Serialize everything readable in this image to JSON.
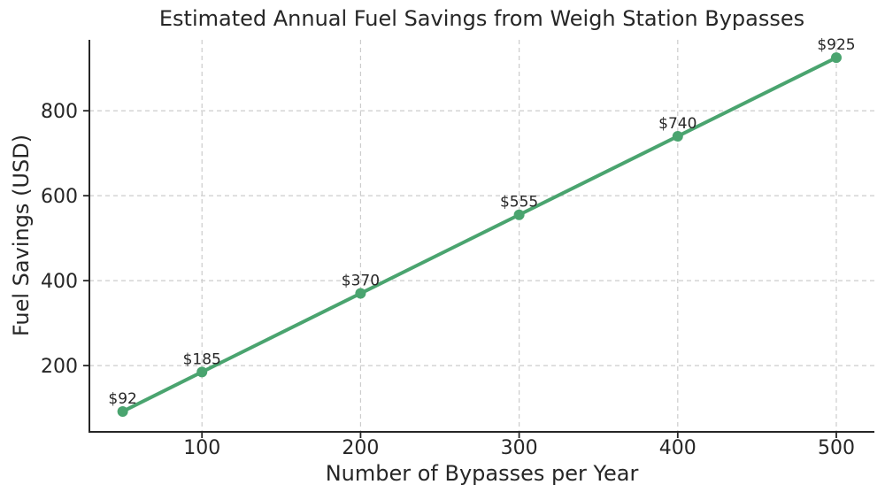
{
  "figure": {
    "title": "Estimated Annual Fuel Savings from Weigh Station Bypasses",
    "xlabel": "Number of Bypasses per Year",
    "ylabel": "Fuel Savings (USD)"
  },
  "chart_data": {
    "type": "line",
    "title": "Estimated Annual Fuel Savings from Weigh Station Bypasses",
    "xlabel": "Number of Bypasses per Year",
    "ylabel": "Fuel Savings (USD)",
    "series": [
      {
        "name": "Fuel Savings",
        "x": [
          50,
          100,
          200,
          300,
          400,
          500
        ],
        "y": [
          92,
          185,
          370,
          555,
          740,
          925
        ],
        "point_labels": [
          "$92",
          "$185",
          "$370",
          "$555",
          "$740",
          "$925"
        ]
      }
    ],
    "xticks": [
      100,
      200,
      300,
      400,
      500
    ],
    "yticks": [
      200,
      400,
      600,
      800
    ],
    "xlim": [
      29,
      524
    ],
    "ylim": [
      44,
      967
    ],
    "grid": true,
    "grid_style": "dashed",
    "legend": "none",
    "colors": {
      "line": "#4aa46f",
      "marker": "#4aa46f",
      "grid": "#cccccc",
      "axis": "#262626",
      "text": "#262626",
      "background": "#ffffff"
    }
  }
}
